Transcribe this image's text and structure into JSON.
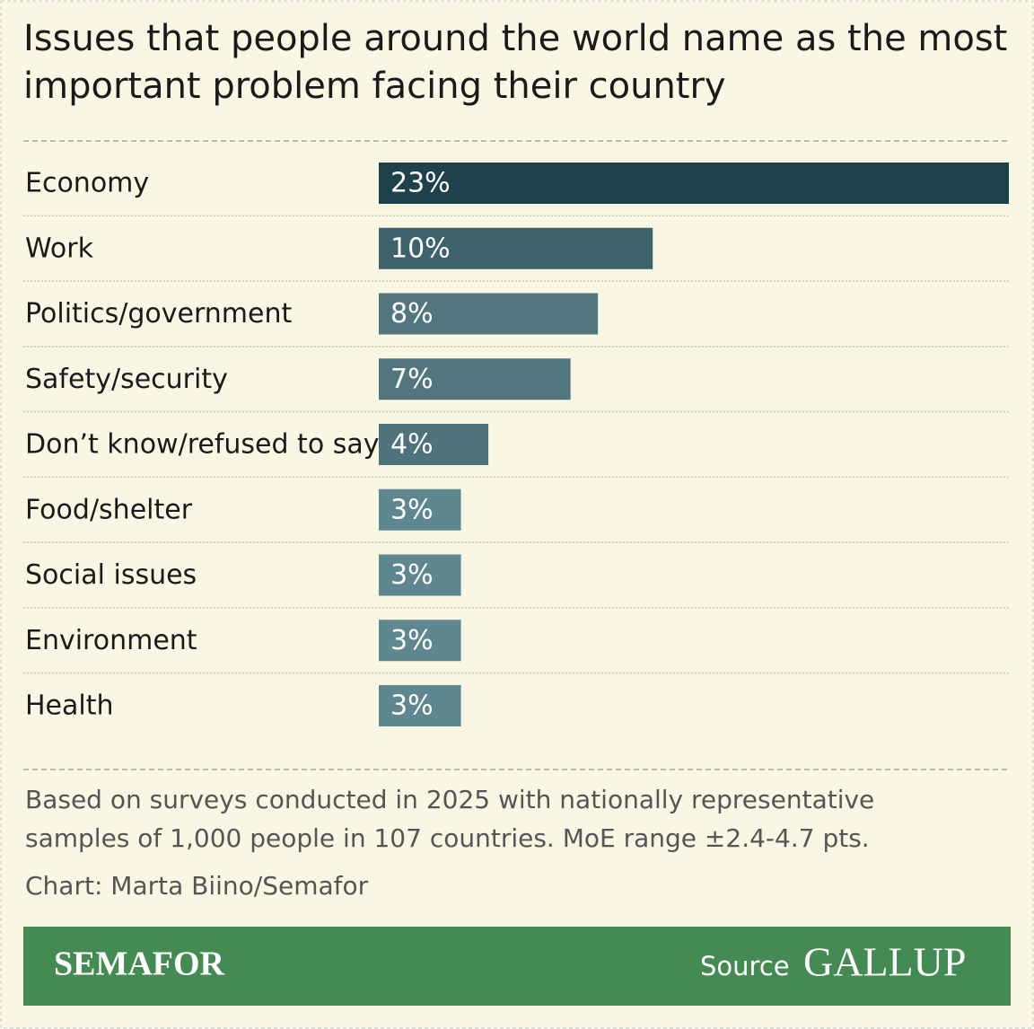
{
  "chart_data": {
    "type": "bar",
    "orientation": "horizontal",
    "title": "Issues that people around the world name as the most important problem facing their country",
    "categories": [
      "Economy",
      "Work",
      "Politics/government",
      "Safety/security",
      "Don’t know/refused to say",
      "Food/shelter",
      "Social issues",
      "Environment",
      "Health"
    ],
    "values": [
      23,
      10,
      8,
      7,
      4,
      3,
      3,
      3,
      3
    ],
    "value_labels": [
      "23%",
      "10%",
      "8%",
      "7%",
      "4%",
      "3%",
      "3%",
      "3%",
      "3%"
    ],
    "colors": [
      "#1e424b",
      "#3e626b",
      "#53767e",
      "#53767e",
      "#4f737b",
      "#5f878f",
      "#5f878f",
      "#5f878f",
      "#5f878f"
    ],
    "note": "Based on surveys conducted in 2025 with nationally representative samples of 1,000 people in 107 countries. MoE range ±2.4-4.7 pts.",
    "credit": "Chart: Marta Biino/Semafor",
    "brand": "SEMAFOR",
    "source_label": "Source",
    "source": "GALLUP"
  }
}
